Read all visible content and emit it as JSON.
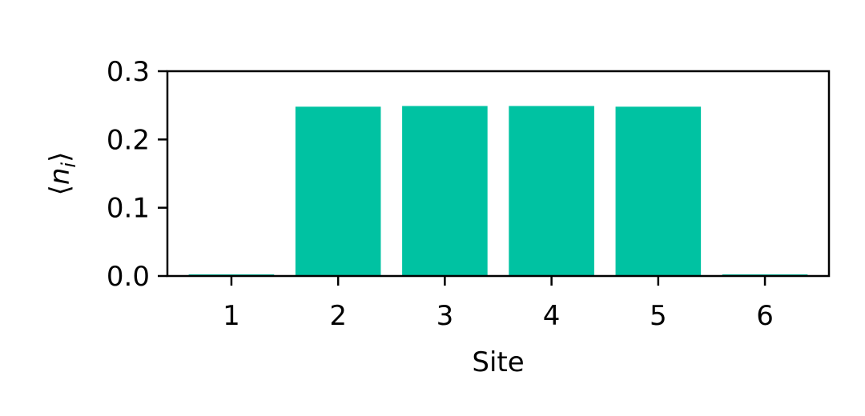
{
  "chart_data": {
    "type": "bar",
    "categories": [
      "1",
      "2",
      "3",
      "4",
      "5",
      "6"
    ],
    "values": [
      0.001,
      0.248,
      0.249,
      0.249,
      0.248,
      0.001
    ],
    "title": "",
    "xlabel": "Site",
    "ylabel": "⟨n_i⟩",
    "ylim": [
      0,
      0.3
    ],
    "yticks": [
      "0.0",
      "0.1",
      "0.2",
      "0.3"
    ],
    "grid": false,
    "bar_color": "#00c2a2"
  }
}
